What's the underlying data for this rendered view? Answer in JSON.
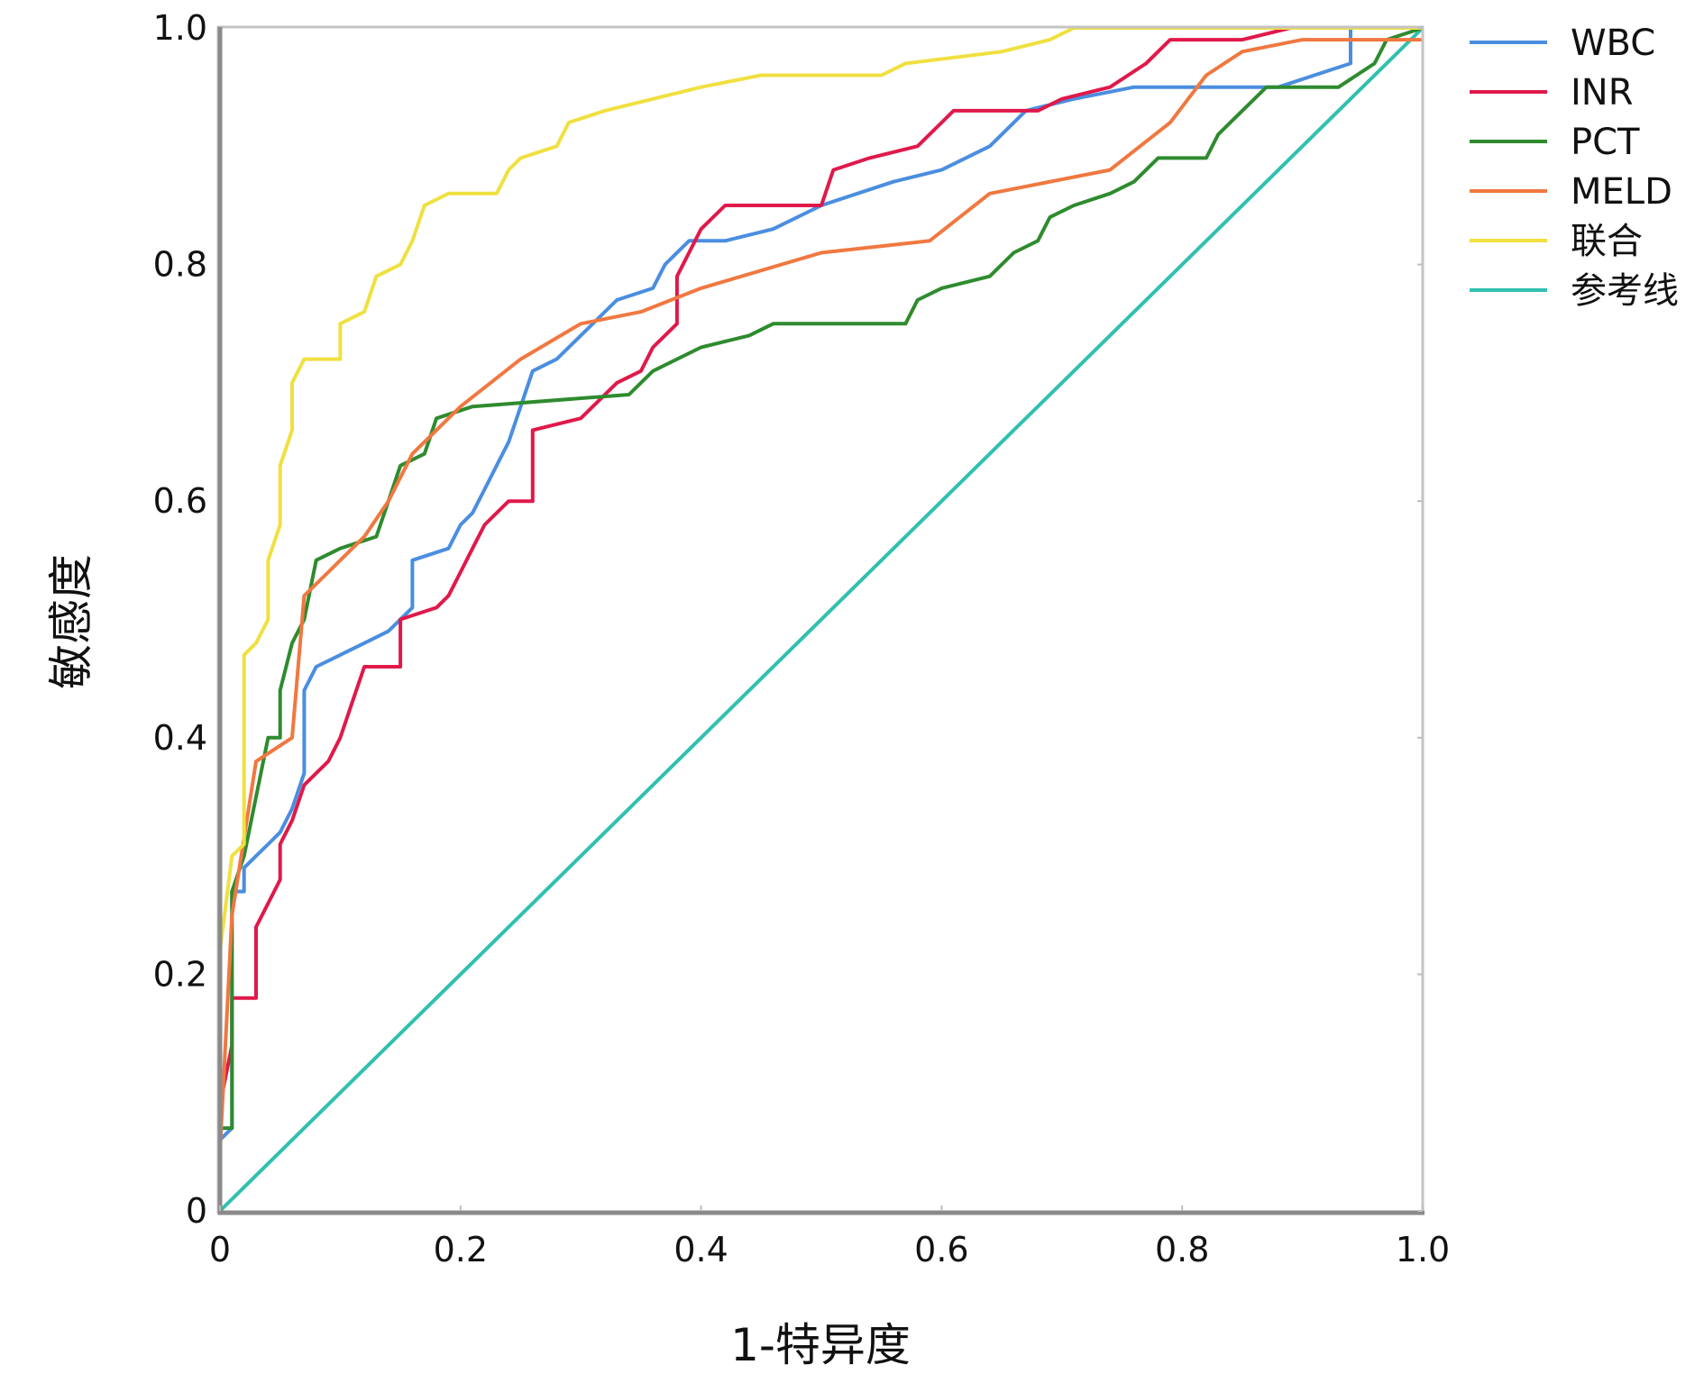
{
  "chart_data": {
    "type": "line",
    "xlabel": "1-特异度",
    "ylabel": "敏感度",
    "xlim": [
      0,
      1
    ],
    "ylim": [
      0,
      1
    ],
    "x_ticks": [
      "0",
      "0.2",
      "0.4",
      "0.6",
      "0.8",
      "1.0"
    ],
    "y_ticks": [
      "0",
      "0.2",
      "0.4",
      "0.6",
      "0.8",
      "1.0"
    ],
    "grid": false,
    "legend_position": "right-top",
    "series": [
      {
        "name": "WBC",
        "color": "#4a8ee0",
        "points": [
          [
            0,
            0
          ],
          [
            0,
            0.06
          ],
          [
            0.01,
            0.07
          ],
          [
            0.01,
            0.27
          ],
          [
            0.02,
            0.27
          ],
          [
            0.02,
            0.29
          ],
          [
            0.03,
            0.3
          ],
          [
            0.04,
            0.31
          ],
          [
            0.05,
            0.32
          ],
          [
            0.06,
            0.34
          ],
          [
            0.07,
            0.37
          ],
          [
            0.07,
            0.44
          ],
          [
            0.08,
            0.46
          ],
          [
            0.1,
            0.47
          ],
          [
            0.12,
            0.48
          ],
          [
            0.14,
            0.49
          ],
          [
            0.16,
            0.51
          ],
          [
            0.16,
            0.55
          ],
          [
            0.19,
            0.56
          ],
          [
            0.2,
            0.58
          ],
          [
            0.21,
            0.59
          ],
          [
            0.22,
            0.61
          ],
          [
            0.23,
            0.63
          ],
          [
            0.24,
            0.65
          ],
          [
            0.25,
            0.68
          ],
          [
            0.26,
            0.71
          ],
          [
            0.28,
            0.72
          ],
          [
            0.3,
            0.74
          ],
          [
            0.33,
            0.77
          ],
          [
            0.36,
            0.78
          ],
          [
            0.37,
            0.8
          ],
          [
            0.39,
            0.82
          ],
          [
            0.42,
            0.82
          ],
          [
            0.46,
            0.83
          ],
          [
            0.5,
            0.85
          ],
          [
            0.53,
            0.86
          ],
          [
            0.56,
            0.87
          ],
          [
            0.6,
            0.88
          ],
          [
            0.64,
            0.9
          ],
          [
            0.67,
            0.93
          ],
          [
            0.71,
            0.94
          ],
          [
            0.76,
            0.95
          ],
          [
            0.82,
            0.95
          ],
          [
            0.88,
            0.95
          ],
          [
            0.91,
            0.96
          ],
          [
            0.94,
            0.97
          ],
          [
            0.94,
            1.0
          ],
          [
            1,
            1
          ]
        ]
      },
      {
        "name": "INR",
        "color": "#e0194a",
        "points": [
          [
            0,
            0
          ],
          [
            0,
            0.09
          ],
          [
            0.01,
            0.14
          ],
          [
            0.01,
            0.18
          ],
          [
            0.03,
            0.18
          ],
          [
            0.03,
            0.24
          ],
          [
            0.04,
            0.26
          ],
          [
            0.05,
            0.28
          ],
          [
            0.05,
            0.31
          ],
          [
            0.06,
            0.33
          ],
          [
            0.07,
            0.36
          ],
          [
            0.08,
            0.37
          ],
          [
            0.09,
            0.38
          ],
          [
            0.1,
            0.4
          ],
          [
            0.11,
            0.43
          ],
          [
            0.12,
            0.46
          ],
          [
            0.15,
            0.46
          ],
          [
            0.15,
            0.5
          ],
          [
            0.18,
            0.51
          ],
          [
            0.19,
            0.52
          ],
          [
            0.2,
            0.54
          ],
          [
            0.21,
            0.56
          ],
          [
            0.22,
            0.58
          ],
          [
            0.24,
            0.6
          ],
          [
            0.26,
            0.6
          ],
          [
            0.26,
            0.66
          ],
          [
            0.3,
            0.67
          ],
          [
            0.33,
            0.7
          ],
          [
            0.35,
            0.71
          ],
          [
            0.36,
            0.73
          ],
          [
            0.38,
            0.75
          ],
          [
            0.38,
            0.79
          ],
          [
            0.4,
            0.83
          ],
          [
            0.42,
            0.85
          ],
          [
            0.5,
            0.85
          ],
          [
            0.51,
            0.88
          ],
          [
            0.54,
            0.89
          ],
          [
            0.58,
            0.9
          ],
          [
            0.6,
            0.92
          ],
          [
            0.61,
            0.93
          ],
          [
            0.68,
            0.93
          ],
          [
            0.7,
            0.94
          ],
          [
            0.74,
            0.95
          ],
          [
            0.77,
            0.97
          ],
          [
            0.79,
            0.99
          ],
          [
            0.85,
            0.99
          ],
          [
            0.89,
            1.0
          ],
          [
            1,
            1
          ]
        ]
      },
      {
        "name": "PCT",
        "color": "#2e8b2e",
        "points": [
          [
            0,
            0
          ],
          [
            0,
            0.07
          ],
          [
            0.01,
            0.07
          ],
          [
            0.01,
            0.27
          ],
          [
            0.02,
            0.3
          ],
          [
            0.03,
            0.35
          ],
          [
            0.04,
            0.4
          ],
          [
            0.05,
            0.4
          ],
          [
            0.05,
            0.44
          ],
          [
            0.06,
            0.48
          ],
          [
            0.07,
            0.5
          ],
          [
            0.08,
            0.55
          ],
          [
            0.1,
            0.56
          ],
          [
            0.13,
            0.57
          ],
          [
            0.14,
            0.6
          ],
          [
            0.15,
            0.63
          ],
          [
            0.17,
            0.64
          ],
          [
            0.18,
            0.67
          ],
          [
            0.21,
            0.68
          ],
          [
            0.34,
            0.69
          ],
          [
            0.36,
            0.71
          ],
          [
            0.4,
            0.73
          ],
          [
            0.44,
            0.74
          ],
          [
            0.46,
            0.75
          ],
          [
            0.57,
            0.75
          ],
          [
            0.58,
            0.77
          ],
          [
            0.6,
            0.78
          ],
          [
            0.64,
            0.79
          ],
          [
            0.66,
            0.81
          ],
          [
            0.68,
            0.82
          ],
          [
            0.69,
            0.84
          ],
          [
            0.71,
            0.85
          ],
          [
            0.74,
            0.86
          ],
          [
            0.76,
            0.87
          ],
          [
            0.78,
            0.89
          ],
          [
            0.82,
            0.89
          ],
          [
            0.83,
            0.91
          ],
          [
            0.85,
            0.93
          ],
          [
            0.87,
            0.95
          ],
          [
            0.93,
            0.95
          ],
          [
            0.96,
            0.97
          ],
          [
            0.97,
            0.99
          ],
          [
            1,
            1
          ]
        ]
      },
      {
        "name": "MELD",
        "color": "#f07840",
        "points": [
          [
            0,
            0
          ],
          [
            0,
            0.05
          ],
          [
            0.01,
            0.25
          ],
          [
            0.03,
            0.38
          ],
          [
            0.06,
            0.4
          ],
          [
            0.07,
            0.52
          ],
          [
            0.09,
            0.54
          ],
          [
            0.12,
            0.57
          ],
          [
            0.14,
            0.6
          ],
          [
            0.16,
            0.64
          ],
          [
            0.18,
            0.66
          ],
          [
            0.2,
            0.68
          ],
          [
            0.25,
            0.72
          ],
          [
            0.3,
            0.75
          ],
          [
            0.35,
            0.76
          ],
          [
            0.4,
            0.78
          ],
          [
            0.5,
            0.81
          ],
          [
            0.59,
            0.82
          ],
          [
            0.64,
            0.86
          ],
          [
            0.74,
            0.88
          ],
          [
            0.79,
            0.92
          ],
          [
            0.82,
            0.96
          ],
          [
            0.85,
            0.98
          ],
          [
            0.9,
            0.99
          ],
          [
            0.97,
            0.99
          ],
          [
            1,
            0.99
          ]
        ]
      },
      {
        "name": "联合",
        "color": "#f0e040",
        "points": [
          [
            0,
            0
          ],
          [
            0,
            0.22
          ],
          [
            0.01,
            0.3
          ],
          [
            0.02,
            0.31
          ],
          [
            0.02,
            0.47
          ],
          [
            0.03,
            0.48
          ],
          [
            0.04,
            0.5
          ],
          [
            0.04,
            0.55
          ],
          [
            0.05,
            0.58
          ],
          [
            0.05,
            0.63
          ],
          [
            0.06,
            0.66
          ],
          [
            0.06,
            0.7
          ],
          [
            0.07,
            0.72
          ],
          [
            0.1,
            0.72
          ],
          [
            0.1,
            0.75
          ],
          [
            0.12,
            0.76
          ],
          [
            0.13,
            0.79
          ],
          [
            0.15,
            0.8
          ],
          [
            0.16,
            0.82
          ],
          [
            0.17,
            0.85
          ],
          [
            0.19,
            0.86
          ],
          [
            0.23,
            0.86
          ],
          [
            0.24,
            0.88
          ],
          [
            0.25,
            0.89
          ],
          [
            0.28,
            0.9
          ],
          [
            0.29,
            0.92
          ],
          [
            0.32,
            0.93
          ],
          [
            0.36,
            0.94
          ],
          [
            0.4,
            0.95
          ],
          [
            0.45,
            0.96
          ],
          [
            0.55,
            0.96
          ],
          [
            0.57,
            0.97
          ],
          [
            0.65,
            0.98
          ],
          [
            0.69,
            0.99
          ],
          [
            0.71,
            1.0
          ],
          [
            1,
            1
          ]
        ]
      },
      {
        "name": "参考线",
        "color": "#30c0b0",
        "points": [
          [
            0,
            0
          ],
          [
            1,
            1
          ]
        ]
      }
    ]
  }
}
